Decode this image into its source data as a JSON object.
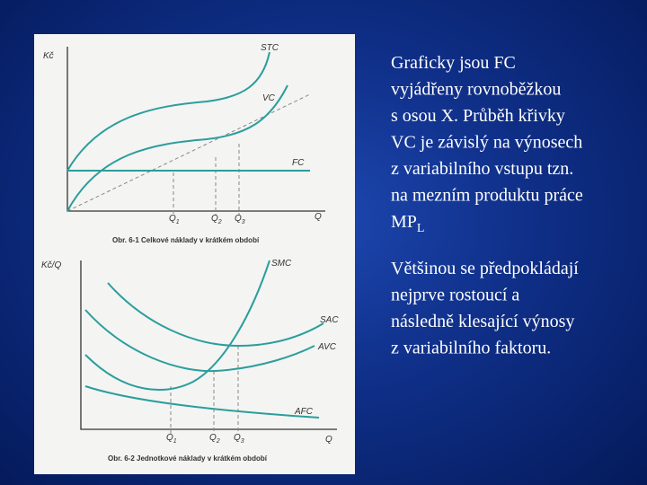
{
  "figure_1": {
    "y_axis_label": "Kč",
    "x_axis_label": "Q",
    "curves": [
      "STC",
      "VC",
      "FC"
    ],
    "x_ticks": [
      {
        "base": "Q",
        "sub": "1"
      },
      {
        "base": "Q",
        "sub": "2"
      },
      {
        "base": "Q",
        "sub": "3"
      }
    ],
    "caption": "Obr. 6-1 Celkové náklady v krátkém období"
  },
  "figure_2": {
    "y_axis_label": "Kč/Q",
    "x_axis_label": "Q",
    "curves": [
      "SMC",
      "SAC",
      "AVC",
      "AFC"
    ],
    "x_ticks": [
      {
        "base": "Q",
        "sub": "1"
      },
      {
        "base": "Q",
        "sub": "2"
      },
      {
        "base": "Q",
        "sub": "3"
      }
    ],
    "caption": "Obr. 6-2 Jednotkové náklady v krátkém období"
  },
  "text": {
    "paragraph_1": {
      "lines": [
        "Graficky jsou FC",
        "vyjádřeny rovnoběžkou",
        "s osou X. Průběh křivky",
        "VC je závislý na výnosech",
        "z variabilního vstupu tzn.",
        "na mezním produktu práce"
      ],
      "last_line": {
        "base": "MP",
        "sub": "L"
      }
    },
    "paragraph_2": {
      "lines": [
        "Většinou se předpokládají",
        "nejprve rostoucí a",
        "následně klesající výnosy",
        "z variabilního faktoru."
      ]
    }
  }
}
